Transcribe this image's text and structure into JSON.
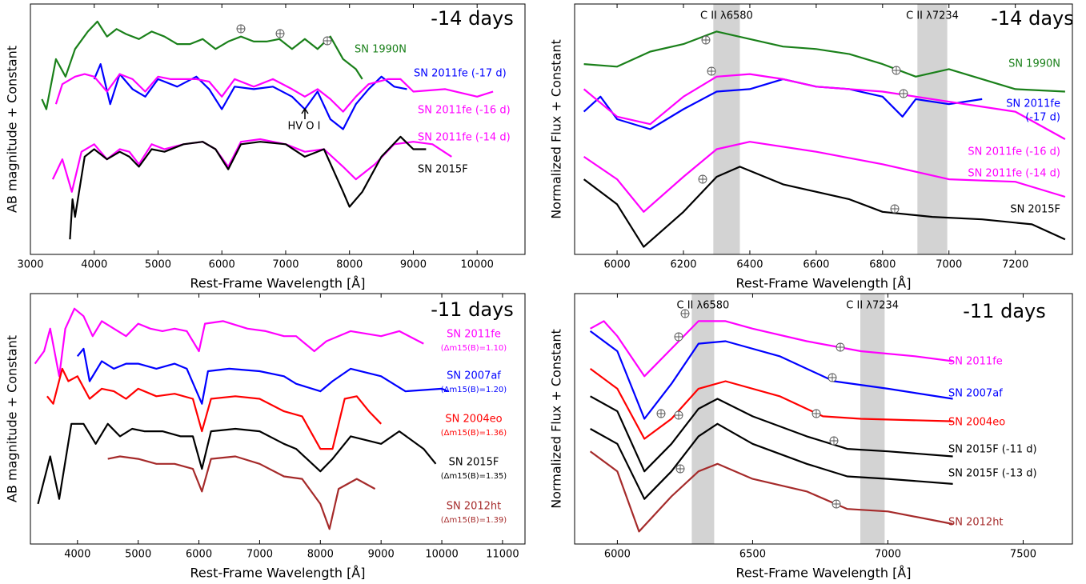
{
  "chart_data": [
    {
      "type": "line",
      "title": "-14 days",
      "xlabel": "Rest-Frame Wavelength [Å]",
      "ylabel": "AB magnitude + Constant",
      "xlim": [
        3000,
        10750
      ],
      "xticks": [
        3000,
        4000,
        5000,
        6000,
        7000,
        8000,
        9000,
        10000
      ],
      "ylim": [
        0,
        10
      ],
      "annotations": [
        "HV O I"
      ],
      "series": [
        {
          "name": "SN 1990N",
          "color": "#1a801a",
          "x": [
            3180,
            3250,
            3400,
            3550,
            3700,
            3900,
            4050,
            4200,
            4350,
            4500,
            4700,
            4900,
            5100,
            5300,
            5500,
            5700,
            5900,
            6100,
            6300,
            6500,
            6700,
            6900,
            7100,
            7300,
            7500,
            7700,
            7900,
            8100,
            8200
          ],
          "values": [
            6.2,
            5.8,
            7.8,
            7.1,
            8.2,
            8.9,
            9.3,
            8.7,
            9.0,
            8.8,
            8.6,
            8.9,
            8.7,
            8.4,
            8.4,
            8.6,
            8.2,
            8.5,
            8.7,
            8.5,
            8.5,
            8.6,
            8.2,
            8.6,
            8.2,
            8.7,
            7.8,
            7.4,
            7.0
          ]
        },
        {
          "name": "SN 2011fe (-17 d)",
          "color": "#0000ff",
          "x": [
            4000,
            4100,
            4250,
            4400,
            4600,
            4800,
            5000,
            5300,
            5600,
            5800,
            6000,
            6200,
            6500,
            6800,
            7100,
            7300,
            7500,
            7700,
            7900,
            8100,
            8300,
            8500,
            8700,
            8900
          ],
          "values": [
            7.0,
            7.6,
            6.0,
            7.2,
            6.6,
            6.3,
            7.0,
            6.7,
            7.1,
            6.6,
            5.8,
            6.7,
            6.6,
            6.7,
            6.3,
            5.8,
            6.5,
            5.4,
            5.0,
            6.0,
            6.6,
            7.1,
            6.7,
            6.6
          ]
        },
        {
          "name": "SN 2011fe (-16 d)",
          "color": "#ff00ff",
          "x": [
            3400,
            3500,
            3700,
            3850,
            4000,
            4200,
            4400,
            4600,
            4800,
            5000,
            5200,
            5400,
            5600,
            5800,
            6000,
            6200,
            6500,
            6800,
            7100,
            7300,
            7500,
            7700,
            7900,
            8100,
            8300,
            8600,
            8800,
            9000,
            9500,
            10000,
            10250
          ],
          "values": [
            6.0,
            6.8,
            7.1,
            7.2,
            7.1,
            6.5,
            7.2,
            7.0,
            6.5,
            7.1,
            7.0,
            7.0,
            7.0,
            6.9,
            6.3,
            7.0,
            6.7,
            7.0,
            6.6,
            6.3,
            6.6,
            6.2,
            5.7,
            6.3,
            6.8,
            7.0,
            7.0,
            6.5,
            6.6,
            6.3,
            6.5
          ]
        },
        {
          "name": "SN 2011fe (-14 d)",
          "color": "#ff00ff",
          "x": [
            3350,
            3500,
            3650,
            3800,
            4000,
            4200,
            4400,
            4550,
            4700,
            4900,
            5100,
            5400,
            5700,
            5900,
            6100,
            6300,
            6600,
            7000,
            7300,
            7600,
            7900,
            8100,
            8400,
            8700,
            9000,
            9300,
            9600
          ],
          "values": [
            3.0,
            3.8,
            2.5,
            4.1,
            4.4,
            3.8,
            4.2,
            4.1,
            3.6,
            4.4,
            4.2,
            4.4,
            4.5,
            4.2,
            3.5,
            4.5,
            4.6,
            4.4,
            4.1,
            4.2,
            3.5,
            3.0,
            3.6,
            4.4,
            4.5,
            4.4,
            3.9
          ]
        },
        {
          "name": "SN 2015F",
          "color": "#000000",
          "x": [
            3620,
            3660,
            3700,
            3850,
            4000,
            4200,
            4400,
            4550,
            4700,
            4900,
            5100,
            5400,
            5700,
            5900,
            6100,
            6300,
            6600,
            7000,
            7300,
            7600,
            7900,
            8000,
            8200,
            8500,
            8800,
            9000,
            9200
          ],
          "values": [
            0.6,
            2.2,
            1.5,
            3.9,
            4.2,
            3.8,
            4.1,
            3.9,
            3.5,
            4.2,
            4.1,
            4.4,
            4.5,
            4.2,
            3.4,
            4.4,
            4.5,
            4.4,
            3.9,
            4.2,
            2.5,
            1.9,
            2.5,
            3.9,
            4.7,
            4.2,
            4.2
          ]
        }
      ]
    },
    {
      "type": "line",
      "title": "-14 days",
      "xlabel": "Rest-Frame Wavelength [Å]",
      "ylabel": "Normalized Flux + Constant",
      "xlim": [
        5872,
        7372
      ],
      "xticks": [
        6000,
        6200,
        6400,
        6600,
        6800,
        7000,
        7200
      ],
      "ylim": [
        0,
        10
      ],
      "bands": [
        {
          "label": "C II λ6580",
          "range": [
            6290,
            6370
          ]
        },
        {
          "label": "C II λ7234",
          "range": [
            6905,
            6995
          ]
        }
      ],
      "series": [
        {
          "name": "SN 1990N",
          "color": "#1a801a",
          "x": [
            5900,
            6000,
            6100,
            6200,
            6300,
            6400,
            6500,
            6600,
            6700,
            6800,
            6900,
            7000,
            7100,
            7200,
            7350
          ],
          "values": [
            7.6,
            7.5,
            8.1,
            8.4,
            8.9,
            8.6,
            8.3,
            8.2,
            8.0,
            7.6,
            7.1,
            7.4,
            7.0,
            6.6,
            6.5
          ]
        },
        {
          "name": "SN 2011fe",
          "note": "(-17 d)",
          "color": "#0000ff",
          "x": [
            5900,
            5950,
            6000,
            6100,
            6200,
            6300,
            6400,
            6500,
            6600,
            6700,
            6800,
            6860,
            6900,
            7000,
            7100
          ],
          "values": [
            5.7,
            6.3,
            5.4,
            5.0,
            5.8,
            6.5,
            6.6,
            7.0,
            6.7,
            6.6,
            6.3,
            5.5,
            6.2,
            6.0,
            6.2
          ]
        },
        {
          "name": "SN 2011fe (-16 d)",
          "color": "#ff00ff",
          "x": [
            5900,
            6000,
            6100,
            6200,
            6300,
            6400,
            6500,
            6600,
            6800,
            7000,
            7200,
            7350
          ],
          "values": [
            6.6,
            5.5,
            5.2,
            6.3,
            7.1,
            7.2,
            7.0,
            6.7,
            6.5,
            6.1,
            5.7,
            4.6
          ]
        },
        {
          "name": "SN 2011fe (-14 d)",
          "color": "#ff00ff",
          "x": [
            5900,
            6000,
            6080,
            6200,
            6300,
            6400,
            6600,
            6800,
            7000,
            7200,
            7350
          ],
          "values": [
            3.9,
            3.0,
            1.7,
            3.1,
            4.2,
            4.5,
            4.1,
            3.6,
            3.0,
            2.9,
            2.3
          ]
        },
        {
          "name": "SN 2015F",
          "color": "#000000",
          "x": [
            5900,
            6000,
            6080,
            6200,
            6300,
            6370,
            6500,
            6700,
            6800,
            6950,
            7100,
            7250,
            7350
          ],
          "values": [
            3.0,
            2.0,
            0.3,
            1.7,
            3.1,
            3.5,
            2.8,
            2.2,
            1.7,
            1.5,
            1.4,
            1.2,
            0.6
          ]
        }
      ]
    },
    {
      "type": "line",
      "title": "-11 days",
      "xlabel": "Rest-Frame Wavelength [Å]",
      "ylabel": "AB magnitude + Constant",
      "xlim": [
        3225,
        11370
      ],
      "xticks": [
        4000,
        5000,
        6000,
        7000,
        8000,
        9000,
        10000,
        11000
      ],
      "ylim": [
        0,
        10
      ],
      "series": [
        {
          "name": "SN 2011fe",
          "note": "(Δm15(B)=1.10)",
          "color": "#ff00ff",
          "x": [
            3300,
            3450,
            3550,
            3700,
            3800,
            3950,
            4100,
            4250,
            4400,
            4600,
            4800,
            5000,
            5200,
            5400,
            5600,
            5800,
            6000,
            6100,
            6400,
            6800,
            7100,
            7400,
            7600,
            7900,
            8100,
            8500,
            9000,
            9300,
            9700
          ],
          "values": [
            7.2,
            7.7,
            8.6,
            6.7,
            8.6,
            9.4,
            9.1,
            8.3,
            8.9,
            8.6,
            8.3,
            8.8,
            8.6,
            8.5,
            8.6,
            8.5,
            7.7,
            8.8,
            8.9,
            8.6,
            8.5,
            8.3,
            8.3,
            7.7,
            8.1,
            8.5,
            8.3,
            8.5,
            8.0
          ]
        },
        {
          "name": "SN 2007af",
          "note": "(Δm15(B)=1.20)",
          "color": "#0000ff",
          "x": [
            4000,
            4100,
            4200,
            4400,
            4600,
            4800,
            5000,
            5300,
            5600,
            5800,
            6050,
            6150,
            6500,
            7000,
            7400,
            7600,
            8000,
            8200,
            8500,
            9000,
            9400,
            10000,
            10100
          ],
          "values": [
            7.5,
            7.8,
            6.5,
            7.3,
            7.0,
            7.2,
            7.2,
            7.0,
            7.2,
            7.0,
            5.6,
            6.9,
            7.0,
            6.9,
            6.7,
            6.4,
            6.1,
            6.5,
            7.0,
            6.7,
            6.1,
            6.2,
            6.1
          ]
        },
        {
          "name": "SN 2004eo",
          "note": "(Δm15(B)=1.36)",
          "color": "#ff0000",
          "x": [
            3500,
            3600,
            3750,
            3850,
            4000,
            4200,
            4400,
            4600,
            4800,
            5000,
            5300,
            5600,
            5900,
            6050,
            6200,
            6600,
            7000,
            7400,
            7700,
            8000,
            8200,
            8400,
            8600,
            8800,
            9000
          ],
          "values": [
            5.9,
            5.6,
            7.0,
            6.5,
            6.7,
            5.8,
            6.2,
            6.1,
            5.8,
            6.2,
            5.9,
            6.0,
            5.8,
            4.5,
            5.8,
            5.9,
            5.8,
            5.3,
            5.1,
            3.8,
            3.8,
            5.8,
            5.9,
            5.3,
            4.8
          ]
        },
        {
          "name": "SN 2015F",
          "note": "(Δm15(B)=1.35)",
          "color": "#000000",
          "x": [
            3350,
            3550,
            3700,
            3900,
            4100,
            4300,
            4500,
            4700,
            4900,
            5100,
            5400,
            5700,
            5900,
            6050,
            6200,
            6600,
            7000,
            7400,
            7600,
            8000,
            8200,
            8500,
            9000,
            9300,
            9700,
            9900
          ],
          "values": [
            1.6,
            3.5,
            1.8,
            4.8,
            4.8,
            4.0,
            4.8,
            4.3,
            4.6,
            4.5,
            4.5,
            4.3,
            4.3,
            3.0,
            4.5,
            4.6,
            4.5,
            4.0,
            3.8,
            2.9,
            3.4,
            4.3,
            4.0,
            4.5,
            3.8,
            3.2
          ]
        },
        {
          "name": "SN 2012ht",
          "note": "(Δm15(B)=1.39)",
          "color": "#a52a2a",
          "x": [
            4500,
            4700,
            5000,
            5300,
            5600,
            5900,
            6050,
            6200,
            6600,
            7000,
            7400,
            7700,
            8000,
            8150,
            8300,
            8600,
            8900
          ],
          "values": [
            3.4,
            3.5,
            3.4,
            3.2,
            3.2,
            3.0,
            2.1,
            3.4,
            3.5,
            3.2,
            2.7,
            2.6,
            1.6,
            0.6,
            2.2,
            2.6,
            2.2
          ]
        }
      ]
    },
    {
      "type": "line",
      "title": "-11 days",
      "xlabel": "Rest-Frame Wavelength [Å]",
      "ylabel": "Normalized Flux + Constant",
      "xlim": [
        5842,
        7682
      ],
      "xticks": [
        6000,
        6500,
        7000,
        7500
      ],
      "ylim": [
        0,
        10
      ],
      "bands": [
        {
          "label": "C II λ6580",
          "range": [
            6275,
            6358
          ]
        },
        {
          "label": "C II λ7234",
          "range": [
            6898,
            6988
          ]
        }
      ],
      "series": [
        {
          "name": "SN 2011fe",
          "color": "#ff00ff",
          "x": [
            5900,
            5950,
            6000,
            6100,
            6200,
            6300,
            6400,
            6500,
            6700,
            6900,
            7100,
            7240
          ],
          "values": [
            8.6,
            8.9,
            8.3,
            6.7,
            7.8,
            8.9,
            8.9,
            8.6,
            8.1,
            7.7,
            7.5,
            7.3
          ]
        },
        {
          "name": "SN 2007af",
          "color": "#0000ff",
          "x": [
            5900,
            6000,
            6100,
            6200,
            6300,
            6400,
            6600,
            6800,
            7000,
            7240
          ],
          "values": [
            8.5,
            7.7,
            5.0,
            6.4,
            8.0,
            8.1,
            7.5,
            6.5,
            6.2,
            5.8
          ]
        },
        {
          "name": "SN 2004eo",
          "color": "#ff0000",
          "x": [
            5900,
            6000,
            6100,
            6200,
            6300,
            6400,
            6600,
            6760,
            6900,
            7240
          ],
          "values": [
            7.0,
            6.2,
            4.2,
            5.0,
            6.2,
            6.5,
            5.9,
            5.1,
            5.0,
            4.9
          ]
        },
        {
          "name": "SN 2015F (-11 d)",
          "color": "#000000",
          "x": [
            5900,
            6000,
            6100,
            6200,
            6300,
            6370,
            6500,
            6700,
            6850,
            7000,
            7240
          ],
          "values": [
            5.9,
            5.3,
            2.9,
            4.0,
            5.4,
            5.8,
            5.1,
            4.3,
            3.8,
            3.7,
            3.5
          ]
        },
        {
          "name": "SN 2015F (-13 d)",
          "color": "#000000",
          "x": [
            5900,
            6000,
            6100,
            6200,
            6300,
            6370,
            6500,
            6700,
            6850,
            7000,
            7240
          ],
          "values": [
            4.6,
            4.0,
            1.8,
            2.9,
            4.3,
            4.8,
            4.0,
            3.2,
            2.7,
            2.6,
            2.4
          ]
        },
        {
          "name": "SN 2012ht",
          "color": "#a52a2a",
          "x": [
            5900,
            6000,
            6080,
            6200,
            6300,
            6370,
            6500,
            6700,
            6850,
            7000,
            7240
          ],
          "values": [
            3.7,
            2.9,
            0.5,
            1.9,
            2.9,
            3.2,
            2.6,
            2.1,
            1.4,
            1.3,
            0.8
          ]
        }
      ]
    }
  ]
}
